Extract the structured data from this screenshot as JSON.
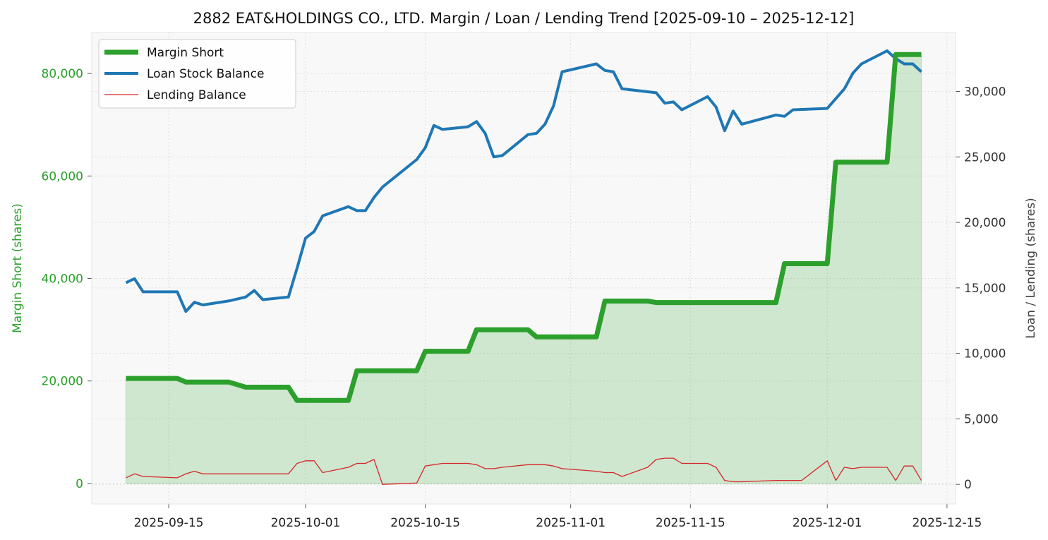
{
  "chart_data": {
    "type": "line",
    "title": "2882 EAT&HOLDINGS CO., LTD. Margin / Loan / Lending Trend [2025-09-10 – 2025-12-12]",
    "xlabel": "",
    "ylabel_left": "Margin Short (shares)",
    "ylabel_right": "Loan / Lending (shares)",
    "xlim": [
      "2025-09-06",
      "2025-12-16"
    ],
    "ylim_left": [
      -4000,
      88000
    ],
    "ylim_right": [
      -1500,
      34500
    ],
    "x_ticks": [
      "2025-09-15",
      "2025-10-01",
      "2025-10-15",
      "2025-11-01",
      "2025-11-15",
      "2025-12-01",
      "2025-12-15"
    ],
    "y_ticks_left": [
      0,
      20000,
      40000,
      60000,
      80000
    ],
    "y_tick_labels_left": [
      "0",
      "20,000",
      "40,000",
      "60,000",
      "80,000"
    ],
    "y_ticks_right": [
      0,
      5000,
      10000,
      15000,
      20000,
      25000,
      30000
    ],
    "y_tick_labels_right": [
      "0",
      "5,000",
      "10,000",
      "15,000",
      "20,000",
      "25,000",
      "30,000"
    ],
    "grid": true,
    "legend_position": "top-left",
    "colors": {
      "margin_short": "#2ca02c",
      "loan": "#1f77b4",
      "lending": "#d62728",
      "fill": "#2ca02c",
      "plot_background": "#f8f8f8"
    },
    "series": [
      {
        "name": "Margin Short",
        "axis": "left",
        "points": [
          [
            "2025-09-10",
            20500
          ],
          [
            "2025-09-11",
            20500
          ],
          [
            "2025-09-12",
            20500
          ],
          [
            "2025-09-16",
            20500
          ],
          [
            "2025-09-17",
            19800
          ],
          [
            "2025-09-18",
            19800
          ],
          [
            "2025-09-19",
            19800
          ],
          [
            "2025-09-22",
            19800
          ],
          [
            "2025-09-24",
            18800
          ],
          [
            "2025-09-25",
            18800
          ],
          [
            "2025-09-26",
            18800
          ],
          [
            "2025-09-29",
            18800
          ],
          [
            "2025-09-30",
            16200
          ],
          [
            "2025-10-01",
            16200
          ],
          [
            "2025-10-02",
            16200
          ],
          [
            "2025-10-06",
            16200
          ],
          [
            "2025-10-07",
            22000
          ],
          [
            "2025-10-08",
            22000
          ],
          [
            "2025-10-09",
            22000
          ],
          [
            "2025-10-10",
            22000
          ],
          [
            "2025-10-14",
            22000
          ],
          [
            "2025-10-15",
            25800
          ],
          [
            "2025-10-16",
            25800
          ],
          [
            "2025-10-17",
            25800
          ],
          [
            "2025-10-20",
            25800
          ],
          [
            "2025-10-21",
            30000
          ],
          [
            "2025-10-22",
            30000
          ],
          [
            "2025-10-23",
            30000
          ],
          [
            "2025-10-24",
            30000
          ],
          [
            "2025-10-27",
            30000
          ],
          [
            "2025-10-28",
            28600
          ],
          [
            "2025-10-29",
            28600
          ],
          [
            "2025-10-30",
            28600
          ],
          [
            "2025-10-31",
            28600
          ],
          [
            "2025-11-04",
            28600
          ],
          [
            "2025-11-05",
            35600
          ],
          [
            "2025-11-06",
            35600
          ],
          [
            "2025-11-07",
            35600
          ],
          [
            "2025-11-10",
            35600
          ],
          [
            "2025-11-11",
            35300
          ],
          [
            "2025-11-12",
            35300
          ],
          [
            "2025-11-13",
            35300
          ],
          [
            "2025-11-14",
            35300
          ],
          [
            "2025-11-17",
            35300
          ],
          [
            "2025-11-18",
            35300
          ],
          [
            "2025-11-19",
            35300
          ],
          [
            "2025-11-20",
            35300
          ],
          [
            "2025-11-21",
            35300
          ],
          [
            "2025-11-25",
            35300
          ],
          [
            "2025-11-26",
            42900
          ],
          [
            "2025-11-27",
            42900
          ],
          [
            "2025-11-28",
            42900
          ],
          [
            "2025-12-01",
            42900
          ],
          [
            "2025-12-02",
            62700
          ],
          [
            "2025-12-03",
            62700
          ],
          [
            "2025-12-04",
            62700
          ],
          [
            "2025-12-05",
            62700
          ],
          [
            "2025-12-08",
            62700
          ],
          [
            "2025-12-09",
            83700
          ],
          [
            "2025-12-10",
            83700
          ],
          [
            "2025-12-11",
            83700
          ],
          [
            "2025-12-12",
            83700
          ]
        ]
      },
      {
        "name": "Loan Stock Balance",
        "axis": "right",
        "points": [
          [
            "2025-09-10",
            15400
          ],
          [
            "2025-09-11",
            15700
          ],
          [
            "2025-09-12",
            14700
          ],
          [
            "2025-09-16",
            14700
          ],
          [
            "2025-09-17",
            13200
          ],
          [
            "2025-09-18",
            13900
          ],
          [
            "2025-09-19",
            13700
          ],
          [
            "2025-09-22",
            14000
          ],
          [
            "2025-09-24",
            14300
          ],
          [
            "2025-09-25",
            14800
          ],
          [
            "2025-09-26",
            14100
          ],
          [
            "2025-09-29",
            14300
          ],
          [
            "2025-09-30",
            16500
          ],
          [
            "2025-10-01",
            18800
          ],
          [
            "2025-10-02",
            19300
          ],
          [
            "2025-10-03",
            20500
          ],
          [
            "2025-10-06",
            21200
          ],
          [
            "2025-10-07",
            20900
          ],
          [
            "2025-10-08",
            20900
          ],
          [
            "2025-10-09",
            21900
          ],
          [
            "2025-10-10",
            22700
          ],
          [
            "2025-10-14",
            24800
          ],
          [
            "2025-10-15",
            25700
          ],
          [
            "2025-10-16",
            27400
          ],
          [
            "2025-10-17",
            27100
          ],
          [
            "2025-10-20",
            27300
          ],
          [
            "2025-10-21",
            27700
          ],
          [
            "2025-10-22",
            26800
          ],
          [
            "2025-10-23",
            25000
          ],
          [
            "2025-10-24",
            25100
          ],
          [
            "2025-10-27",
            26700
          ],
          [
            "2025-10-28",
            26800
          ],
          [
            "2025-10-29",
            27500
          ],
          [
            "2025-10-30",
            28900
          ],
          [
            "2025-10-31",
            31500
          ],
          [
            "2025-11-04",
            32100
          ],
          [
            "2025-11-05",
            31600
          ],
          [
            "2025-11-06",
            31500
          ],
          [
            "2025-11-07",
            30200
          ],
          [
            "2025-11-11",
            29900
          ],
          [
            "2025-11-12",
            29100
          ],
          [
            "2025-11-13",
            29200
          ],
          [
            "2025-11-14",
            28600
          ],
          [
            "2025-11-17",
            29600
          ],
          [
            "2025-11-18",
            28800
          ],
          [
            "2025-11-19",
            27000
          ],
          [
            "2025-11-20",
            28500
          ],
          [
            "2025-11-21",
            27500
          ],
          [
            "2025-11-25",
            28200
          ],
          [
            "2025-11-26",
            28100
          ],
          [
            "2025-11-27",
            28600
          ],
          [
            "2025-12-01",
            28700
          ],
          [
            "2025-12-03",
            30200
          ],
          [
            "2025-12-04",
            31400
          ],
          [
            "2025-12-05",
            32100
          ],
          [
            "2025-12-08",
            33100
          ],
          [
            "2025-12-09",
            32500
          ],
          [
            "2025-12-10",
            32100
          ],
          [
            "2025-12-11",
            32100
          ],
          [
            "2025-12-12",
            31500
          ]
        ]
      },
      {
        "name": "Lending Balance",
        "axis": "right",
        "points": [
          [
            "2025-09-10",
            500
          ],
          [
            "2025-09-11",
            800
          ],
          [
            "2025-09-12",
            600
          ],
          [
            "2025-09-16",
            500
          ],
          [
            "2025-09-17",
            800
          ],
          [
            "2025-09-18",
            1000
          ],
          [
            "2025-09-19",
            800
          ],
          [
            "2025-09-22",
            800
          ],
          [
            "2025-09-29",
            800
          ],
          [
            "2025-09-30",
            1600
          ],
          [
            "2025-10-01",
            1800
          ],
          [
            "2025-10-02",
            1800
          ],
          [
            "2025-10-03",
            900
          ],
          [
            "2025-10-06",
            1300
          ],
          [
            "2025-10-07",
            1600
          ],
          [
            "2025-10-08",
            1600
          ],
          [
            "2025-10-09",
            1900
          ],
          [
            "2025-10-10",
            0
          ],
          [
            "2025-10-14",
            100
          ],
          [
            "2025-10-15",
            1400
          ],
          [
            "2025-10-17",
            1600
          ],
          [
            "2025-10-20",
            1600
          ],
          [
            "2025-10-21",
            1500
          ],
          [
            "2025-10-22",
            1200
          ],
          [
            "2025-10-23",
            1200
          ],
          [
            "2025-10-24",
            1300
          ],
          [
            "2025-10-27",
            1500
          ],
          [
            "2025-10-29",
            1500
          ],
          [
            "2025-10-30",
            1400
          ],
          [
            "2025-10-31",
            1200
          ],
          [
            "2025-11-04",
            1000
          ],
          [
            "2025-11-05",
            900
          ],
          [
            "2025-11-06",
            900
          ],
          [
            "2025-11-07",
            600
          ],
          [
            "2025-11-10",
            1300
          ],
          [
            "2025-11-11",
            1900
          ],
          [
            "2025-11-12",
            2000
          ],
          [
            "2025-11-13",
            2000
          ],
          [
            "2025-11-14",
            1600
          ],
          [
            "2025-11-17",
            1600
          ],
          [
            "2025-11-18",
            1300
          ],
          [
            "2025-11-19",
            300
          ],
          [
            "2025-11-20",
            200
          ],
          [
            "2025-11-21",
            200
          ],
          [
            "2025-11-25",
            300
          ],
          [
            "2025-11-26",
            300
          ],
          [
            "2025-11-27",
            300
          ],
          [
            "2025-11-28",
            300
          ],
          [
            "2025-12-01",
            1800
          ],
          [
            "2025-12-02",
            300
          ],
          [
            "2025-12-03",
            1300
          ],
          [
            "2025-12-04",
            1200
          ],
          [
            "2025-12-05",
            1300
          ],
          [
            "2025-12-08",
            1300
          ],
          [
            "2025-12-09",
            300
          ],
          [
            "2025-12-10",
            1400
          ],
          [
            "2025-12-11",
            1400
          ],
          [
            "2025-12-12",
            300
          ]
        ]
      }
    ]
  }
}
